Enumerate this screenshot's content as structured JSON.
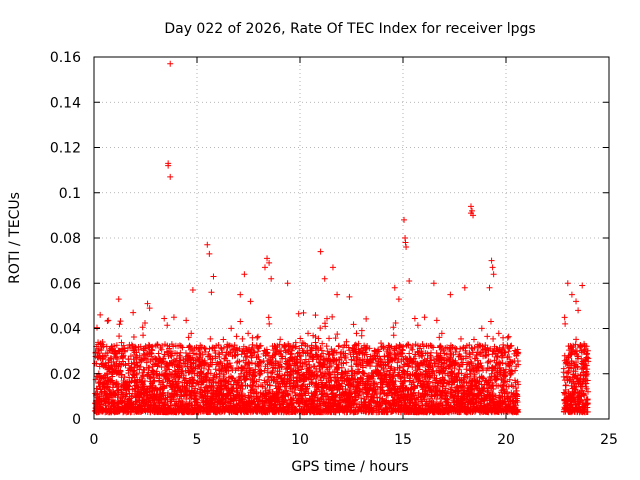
{
  "chart_data": {
    "type": "scatter",
    "title": "Day 022 of 2026, Rate Of TEC Index for receiver lpgs",
    "xlabel": "GPS time / hours",
    "ylabel": "ROTI / TECUs",
    "xlim": [
      0,
      25
    ],
    "ylim": [
      0,
      0.16
    ],
    "grid": true,
    "x_ticks": [
      0,
      5,
      10,
      15,
      20,
      25
    ],
    "y_ticks": [
      0,
      0.02,
      0.04,
      0.06,
      0.08,
      0.1,
      0.12,
      0.14,
      0.16
    ],
    "y_tick_labels": [
      "0",
      "0.02",
      "0.04",
      "0.06",
      "0.08",
      "0.1",
      "0.12",
      "0.14",
      "0.16"
    ],
    "marker": "+",
    "marker_color": "#ff0000",
    "data_gap_hours": [
      20.6,
      22.8
    ],
    "points": [
      [
        3.7,
        0.157
      ],
      [
        3.6,
        0.113
      ],
      [
        3.6,
        0.112
      ],
      [
        3.7,
        0.107
      ],
      [
        15.05,
        0.088
      ],
      [
        15.1,
        0.08
      ],
      [
        15.12,
        0.078
      ],
      [
        15.15,
        0.076
      ],
      [
        18.3,
        0.094
      ],
      [
        18.35,
        0.092
      ],
      [
        18.3,
        0.091
      ],
      [
        18.4,
        0.09
      ],
      [
        19.3,
        0.07
      ],
      [
        19.35,
        0.067
      ],
      [
        19.4,
        0.064
      ],
      [
        19.2,
        0.058
      ],
      [
        5.5,
        0.077
      ],
      [
        5.6,
        0.073
      ],
      [
        5.8,
        0.063
      ],
      [
        5.7,
        0.056
      ],
      [
        4.8,
        0.057
      ],
      [
        7.3,
        0.064
      ],
      [
        7.1,
        0.055
      ],
      [
        7.6,
        0.052
      ],
      [
        8.4,
        0.071
      ],
      [
        8.5,
        0.069
      ],
      [
        8.3,
        0.067
      ],
      [
        8.6,
        0.062
      ],
      [
        9.4,
        0.06
      ],
      [
        11.0,
        0.074
      ],
      [
        11.2,
        0.062
      ],
      [
        11.6,
        0.067
      ],
      [
        11.8,
        0.055
      ],
      [
        12.4,
        0.054
      ],
      [
        14.6,
        0.058
      ],
      [
        14.8,
        0.053
      ],
      [
        15.3,
        0.061
      ],
      [
        16.5,
        0.06
      ],
      [
        17.3,
        0.055
      ],
      [
        18.0,
        0.058
      ],
      [
        2.6,
        0.051
      ],
      [
        2.7,
        0.049
      ],
      [
        1.2,
        0.053
      ],
      [
        0.3,
        0.046
      ],
      [
        1.9,
        0.047
      ],
      [
        23.0,
        0.06
      ],
      [
        23.2,
        0.055
      ],
      [
        23.7,
        0.059
      ],
      [
        23.5,
        0.048
      ],
      [
        23.4,
        0.052
      ]
    ]
  }
}
